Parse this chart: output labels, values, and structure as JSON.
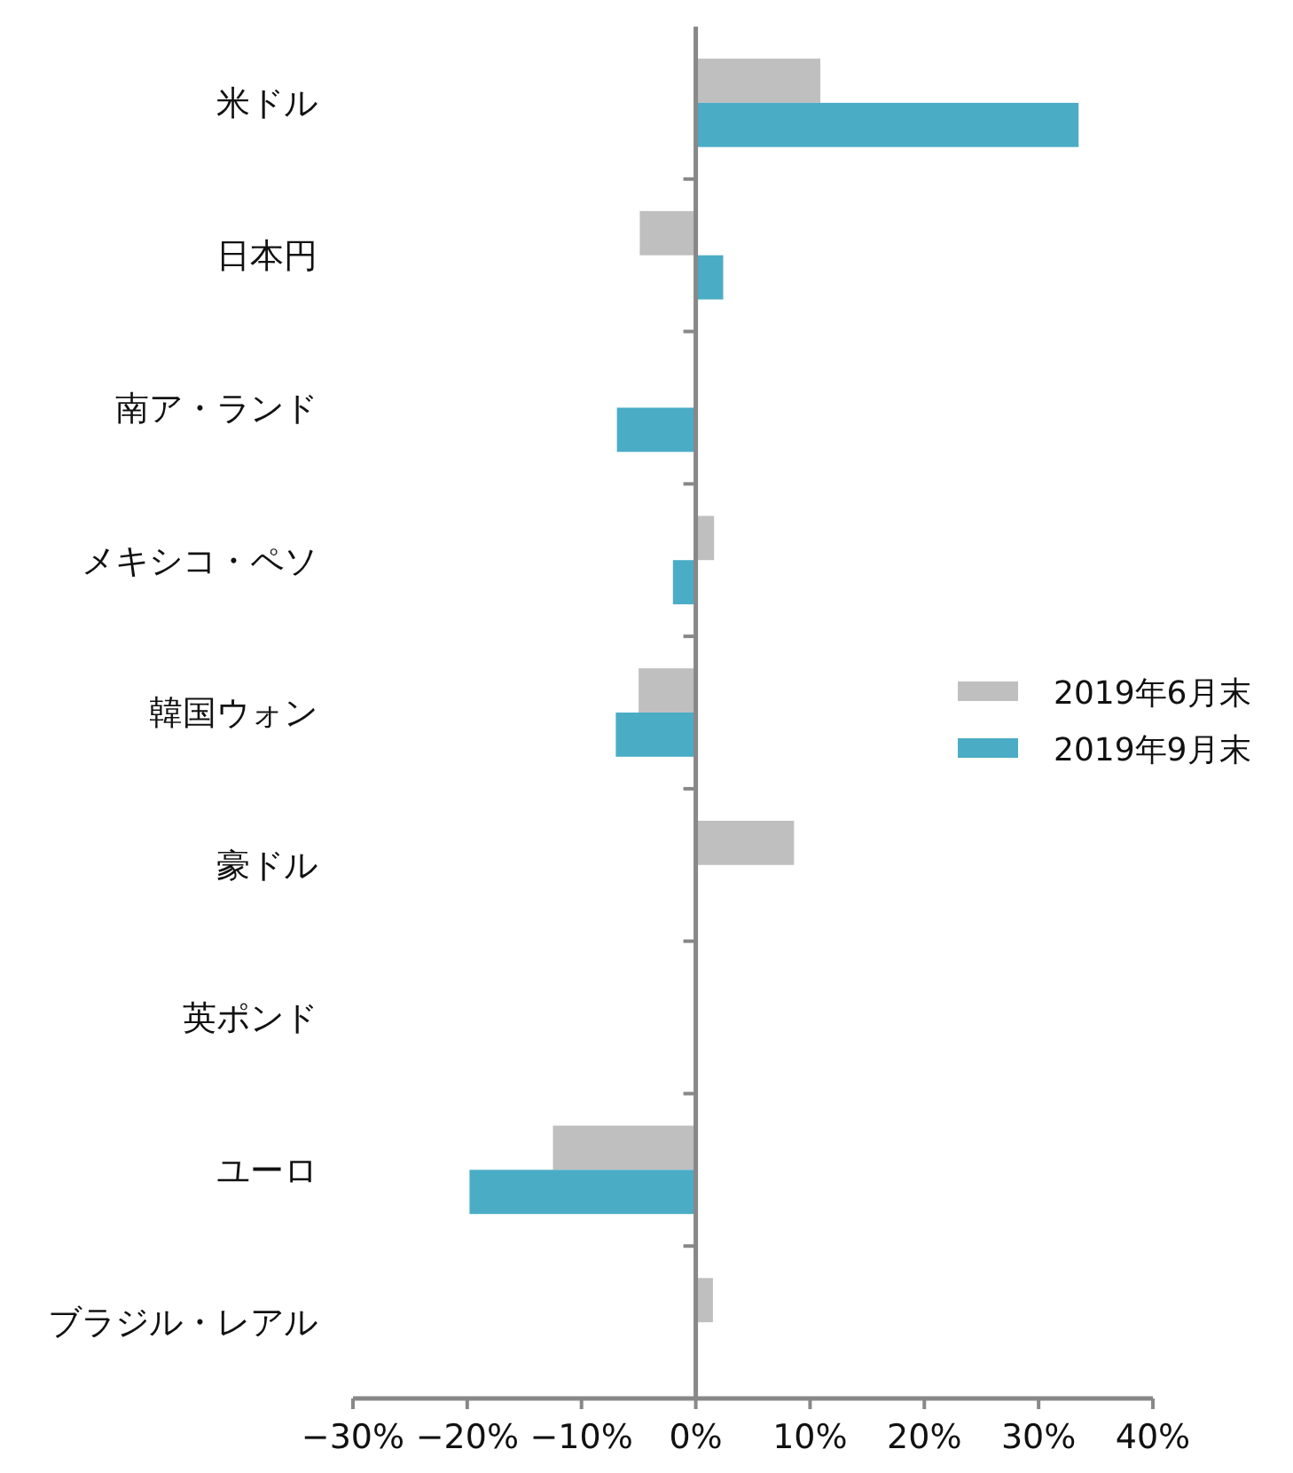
{
  "chart_data": {
    "type": "bar",
    "orientation": "horizontal",
    "categories": [
      "米ドル",
      "日本円",
      "南ア・ランド",
      "メキシコ・ペソ",
      "韓国ウォン",
      "豪ドル",
      "英ポンド",
      "ユーロ",
      "ブラジル・レアル"
    ],
    "series": [
      {
        "name": "2019年6月末",
        "color": "#bfbfbf",
        "values": [
          10.9,
          -4.9,
          null,
          1.6,
          -5.0,
          8.6,
          null,
          -12.5,
          1.5
        ]
      },
      {
        "name": "2019年9月末",
        "color": "#4bacc6",
        "values": [
          33.5,
          2.4,
          -6.9,
          -2.0,
          -7.0,
          null,
          null,
          -19.8,
          null
        ]
      }
    ],
    "xlim": [
      -30,
      40
    ],
    "xticks": [
      {
        "value": -30,
        "label": "−30%"
      },
      {
        "value": -20,
        "label": "−20%"
      },
      {
        "value": -10,
        "label": "−10%"
      },
      {
        "value": 0,
        "label": "0%"
      },
      {
        "value": 10,
        "label": "10%"
      },
      {
        "value": 20,
        "label": "20%"
      },
      {
        "value": 30,
        "label": "30%"
      },
      {
        "value": 40,
        "label": "40%"
      }
    ],
    "legend": "right"
  }
}
